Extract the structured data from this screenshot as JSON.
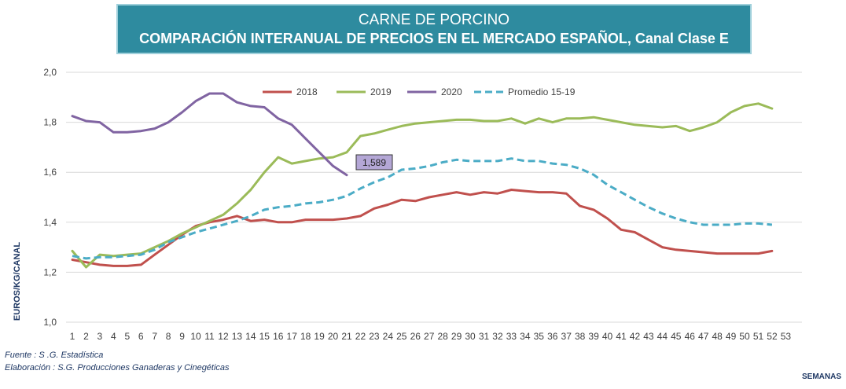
{
  "header": {
    "title_line1": "CARNE DE PORCINO",
    "title_line2": "COMPARACIÓN INTERANUAL DE PRECIOS EN EL MERCADO ESPAÑOL, Canal Clase E"
  },
  "footer": {
    "source": "Fuente :  S .G. Estadística",
    "elaboration": "Elaboración : S.G. Producciones Ganaderas y Cinegéticas"
  },
  "chart_data": {
    "type": "line",
    "title": "CARNE DE PORCINO",
    "subtitle": "COMPARACIÓN INTERANUAL DE PRECIOS EN EL MERCADO ESPAÑOL, Canal Clase E",
    "xlabel": "SEMANAS",
    "ylabel": "EUROS/KG/CANAL",
    "ylim": [
      1.0,
      2.0
    ],
    "yticks": [
      "1,0",
      "1,2",
      "1,4",
      "1,6",
      "1,8",
      "2,0"
    ],
    "xticks": [
      "1",
      "2",
      "3",
      "4",
      "5",
      "6",
      "7",
      "8",
      "9",
      "10",
      "11",
      "12",
      "13",
      "14",
      "15",
      "16",
      "17",
      "18",
      "19",
      "20",
      "21",
      "22",
      "23",
      "24",
      "25",
      "26",
      "27",
      "28",
      "29",
      "30",
      "31",
      "32",
      "33",
      "34",
      "35",
      "36",
      "37",
      "38",
      "39",
      "40",
      "41",
      "42",
      "43",
      "44",
      "45",
      "46",
      "47",
      "48",
      "49",
      "50",
      "51",
      "52",
      "53"
    ],
    "grid": true,
    "legend_position": "top",
    "annotation": {
      "label": "1,589",
      "series": "2020",
      "week": 21
    },
    "series": [
      {
        "name": "2018",
        "color": "#c0504d",
        "dashed": false,
        "values": [
          1.25,
          1.24,
          1.23,
          1.225,
          1.225,
          1.23,
          1.27,
          1.31,
          1.35,
          1.385,
          1.4,
          1.41,
          1.425,
          1.405,
          1.41,
          1.4,
          1.4,
          1.41,
          1.41,
          1.41,
          1.415,
          1.425,
          1.455,
          1.47,
          1.49,
          1.485,
          1.5,
          1.51,
          1.52,
          1.51,
          1.52,
          1.515,
          1.53,
          1.525,
          1.52,
          1.52,
          1.515,
          1.465,
          1.45,
          1.415,
          1.37,
          1.36,
          1.33,
          1.3,
          1.29,
          1.285,
          1.28,
          1.275,
          1.275,
          1.275,
          1.275,
          1.285
        ]
      },
      {
        "name": "2019",
        "color": "#9bbb59",
        "dashed": false,
        "values": [
          1.285,
          1.22,
          1.27,
          1.265,
          1.27,
          1.275,
          1.3,
          1.325,
          1.355,
          1.38,
          1.405,
          1.43,
          1.475,
          1.53,
          1.6,
          1.66,
          1.635,
          1.645,
          1.655,
          1.66,
          1.68,
          1.745,
          1.755,
          1.77,
          1.785,
          1.795,
          1.8,
          1.805,
          1.81,
          1.81,
          1.805,
          1.805,
          1.815,
          1.795,
          1.815,
          1.8,
          1.815,
          1.815,
          1.82,
          1.81,
          1.8,
          1.79,
          1.785,
          1.78,
          1.785,
          1.765,
          1.78,
          1.8,
          1.84,
          1.865,
          1.875,
          1.855
        ]
      },
      {
        "name": "2020",
        "color": "#8064a2",
        "dashed": false,
        "values": [
          1.825,
          1.805,
          1.8,
          1.76,
          1.76,
          1.765,
          1.775,
          1.8,
          1.84,
          1.885,
          1.915,
          1.915,
          1.88,
          1.865,
          1.86,
          1.815,
          1.79,
          1.735,
          1.68,
          1.625,
          1.589
        ]
      },
      {
        "name": "Promedio 15-19",
        "color": "#4bacc6",
        "dashed": true,
        "values": [
          1.265,
          1.255,
          1.26,
          1.26,
          1.265,
          1.27,
          1.29,
          1.32,
          1.34,
          1.36,
          1.375,
          1.39,
          1.405,
          1.425,
          1.45,
          1.46,
          1.465,
          1.475,
          1.48,
          1.49,
          1.505,
          1.535,
          1.56,
          1.58,
          1.61,
          1.615,
          1.625,
          1.64,
          1.65,
          1.645,
          1.645,
          1.645,
          1.655,
          1.645,
          1.645,
          1.635,
          1.63,
          1.615,
          1.59,
          1.55,
          1.52,
          1.49,
          1.46,
          1.435,
          1.415,
          1.4,
          1.39,
          1.39,
          1.39,
          1.395,
          1.395,
          1.39
        ]
      }
    ]
  }
}
